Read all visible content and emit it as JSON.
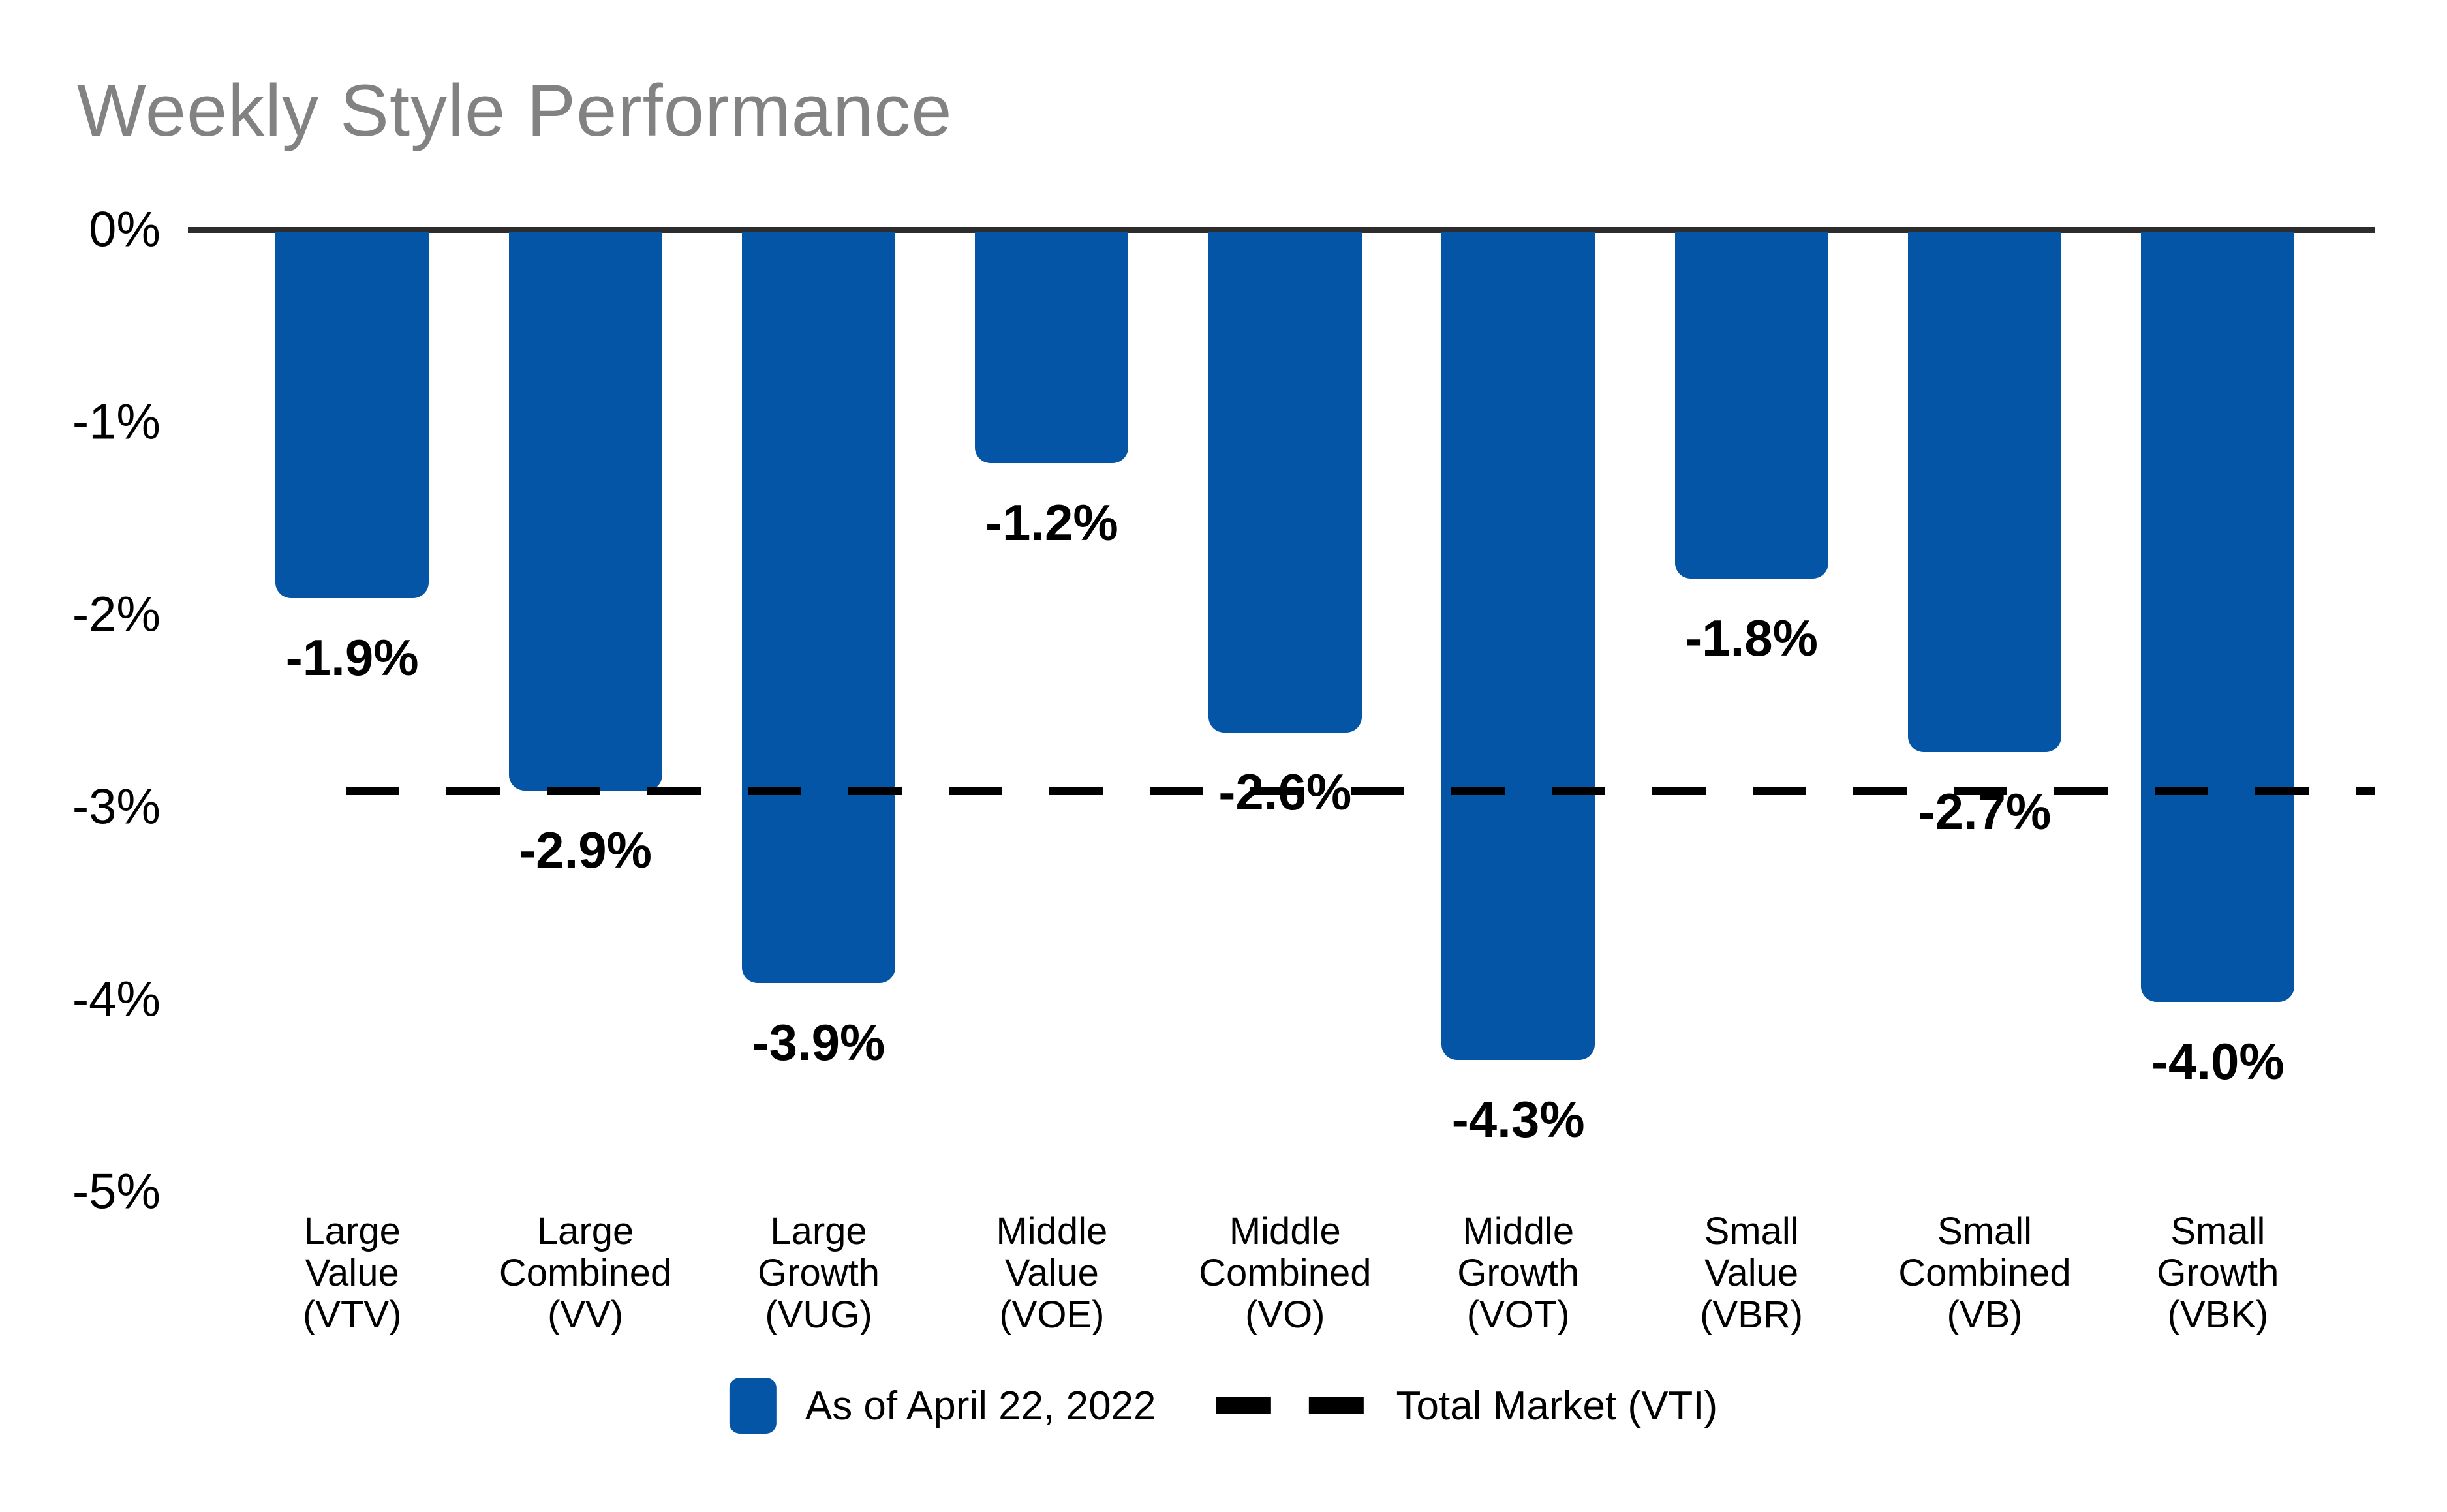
{
  "title": "Weekly Style Performance",
  "chart_data": {
    "type": "bar",
    "title": "Weekly Style Performance",
    "categories": [
      "Large\nValue\n(VTV)",
      "Large\nCombined\n(VV)",
      "Large\nGrowth\n(VUG)",
      "Middle\nValue\n(VOE)",
      "Middle\nCombined\n(VO)",
      "Middle\nGrowth\n(VOT)",
      "Small\nValue\n(VBR)",
      "Small\nCombined\n(VB)",
      "Small\nGrowth\n(VBK)"
    ],
    "tickers": [
      "VTV",
      "VV",
      "VUG",
      "VOE",
      "VO",
      "VOT",
      "VBR",
      "VB",
      "VBK"
    ],
    "series": [
      {
        "name": "As of April 22, 2022",
        "values": [
          -1.9,
          -2.9,
          -3.9,
          -1.2,
          -2.6,
          -4.3,
          -1.8,
          -2.7,
          -4.0
        ]
      }
    ],
    "value_labels": [
      "-1.9%",
      "-2.9%",
      "-3.9%",
      "-1.2%",
      "-2.6%",
      "-4.3%",
      "-1.8%",
      "-2.7%",
      "-4.0%"
    ],
    "ytick_labels": [
      "0%",
      "-1%",
      "-2%",
      "-3%",
      "-4%",
      "-5%"
    ],
    "ytick_values": [
      0,
      -1,
      -2,
      -3,
      -4,
      -5
    ],
    "ylim": [
      -5,
      0
    ],
    "reference_line": {
      "name": "Total Market (VTI)",
      "value": -2.9,
      "style": "dashed"
    },
    "legend": {
      "position": "bottom",
      "entries": [
        "As of April 22, 2022",
        "Total Market (VTI)"
      ]
    },
    "grid": false,
    "colors": {
      "bar": "#0455a5",
      "axis_line": "#2d2d2d",
      "title_text": "#828282",
      "reference_line": "#000000",
      "background": "#ffffff"
    }
  },
  "legend": {
    "as_of": "As of April 22, 2022",
    "total_market": "Total Market (VTI)"
  }
}
